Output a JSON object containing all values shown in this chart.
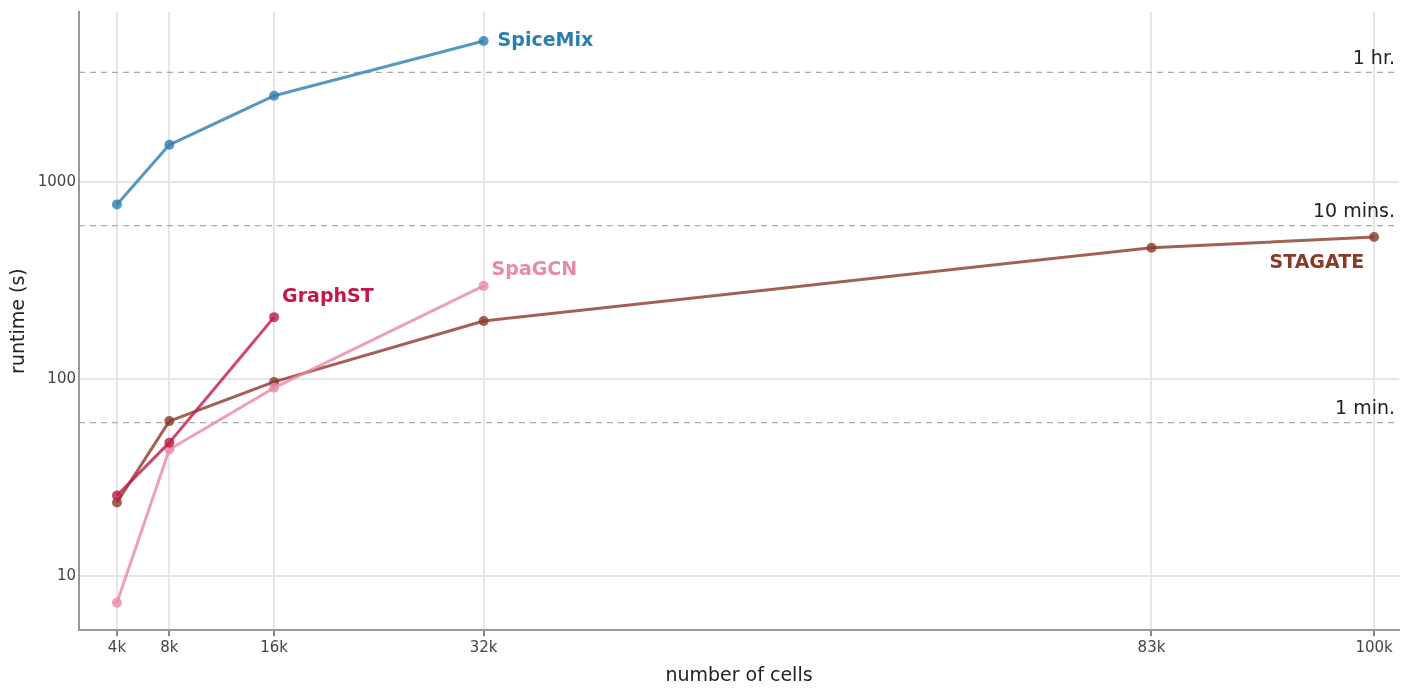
{
  "chart_data": {
    "type": "line",
    "xlabel": "number of cells",
    "ylabel": "runtime (s)",
    "xlim": [
      1.1,
      101.9
    ],
    "xticks": [
      {
        "value": 4,
        "label": "4k"
      },
      {
        "value": 8,
        "label": "8k"
      },
      {
        "value": 16,
        "label": "16k"
      },
      {
        "value": 32,
        "label": "32k"
      },
      {
        "value": 83,
        "label": "83k"
      },
      {
        "value": 100,
        "label": "100k"
      }
    ],
    "ylim": [
      5.3,
      7300
    ],
    "yticks": [
      10,
      100,
      1000
    ],
    "log": "y",
    "grid": true,
    "legend": false,
    "marker": "circle",
    "line_style": "solid",
    "series": [
      {
        "name": "SpiceMix",
        "color": "#2a7fb0",
        "x": [
          4,
          8,
          16,
          32
        ],
        "values": [
          769,
          1545,
          2740,
          5200
        ]
      },
      {
        "name": "GraphST",
        "color": "#c2184a",
        "x": [
          4,
          8,
          16
        ],
        "values": [
          25.6,
          47.5,
          206
        ]
      },
      {
        "name": "SpaGCN",
        "color": "#e88aa8",
        "x": [
          4,
          8,
          16,
          32
        ],
        "values": [
          7.3,
          43.8,
          90.2,
          297
        ]
      },
      {
        "name": "STAGATE",
        "color": "#8b3a2a",
        "x": [
          4,
          8,
          16,
          32,
          83,
          100
        ],
        "values": [
          23.6,
          61.1,
          96.6,
          197,
          464,
          526
        ]
      }
    ],
    "ref_lines": [
      {
        "axis": "y",
        "value": 60,
        "label": "1 min.",
        "color": "#aaaaaa",
        "line_style": "dashed"
      },
      {
        "axis": "y",
        "value": 600,
        "label": "10 mins.",
        "color": "#aaaaaa",
        "line_style": "dashed"
      },
      {
        "axis": "y",
        "value": 3600,
        "label": "1 hr.",
        "color": "#aaaaaa",
        "line_style": "dashed"
      }
    ]
  }
}
